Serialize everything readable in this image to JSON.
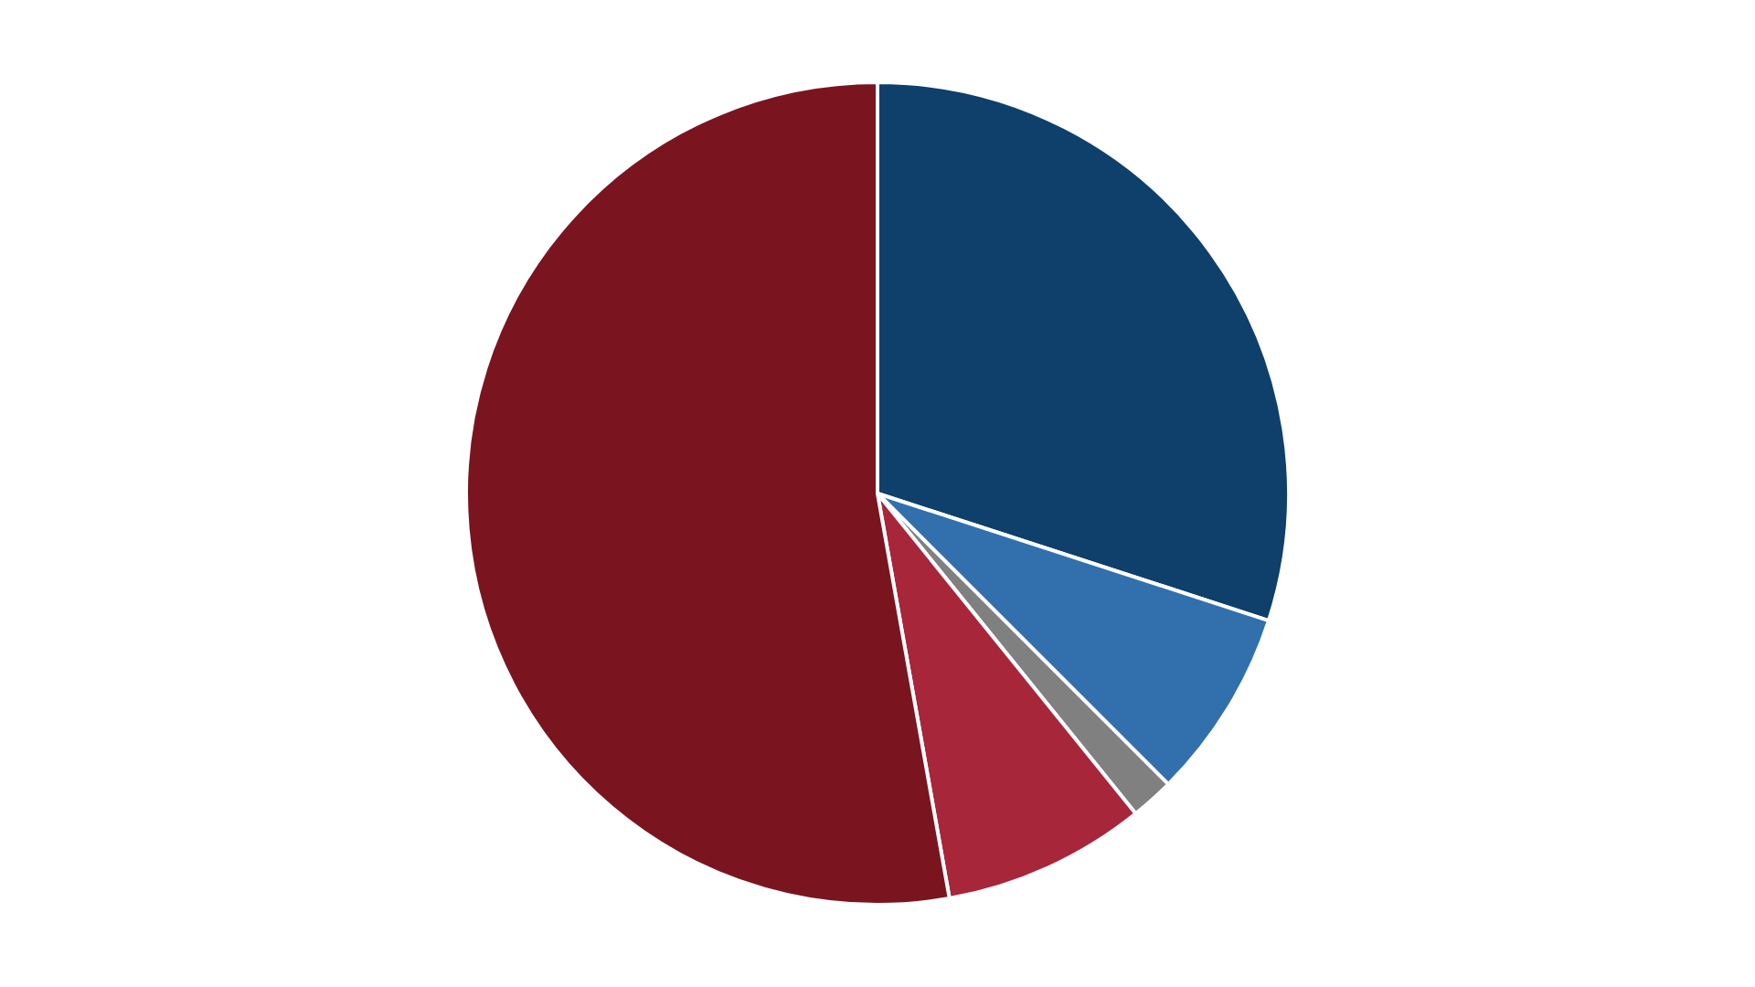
{
  "chart_data": {
    "type": "pie",
    "categories": [
      null,
      null,
      null,
      null,
      null
    ],
    "values": [
      30,
      7.5,
      1.7,
      8,
      52.8
    ],
    "colors": [
      "#0f3f6b",
      "#3170ad",
      "#808080",
      "#a8263a",
      "#7a1520"
    ],
    "legend": false
  }
}
